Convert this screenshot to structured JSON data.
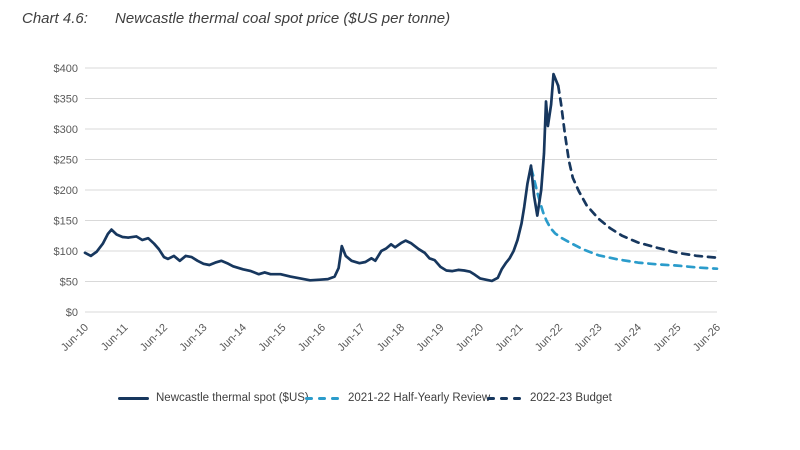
{
  "title": {
    "chart_number": "Chart 4.6:",
    "chart_title": "Newcastle thermal coal spot price ($US per tonne)"
  },
  "colors": {
    "navy": "#17375E",
    "light_blue": "#2B9CCB",
    "gridline": "#D9D9D9",
    "axis_text": "#595959",
    "title_text": "#3F3F3F",
    "legend_text": "#404040"
  },
  "chart_data": {
    "type": "line",
    "title": "Newcastle thermal coal spot price ($US per tonne)",
    "xlabel": "",
    "ylabel": "$US per tonne",
    "grid": "horizontal",
    "legend_position": "bottom",
    "x_axis": {
      "unit": "years since Jun-2010",
      "range": [
        0,
        16
      ],
      "tick_labels": [
        "Jun-10",
        "Jun-11",
        "Jun-12",
        "Jun-13",
        "Jun-14",
        "Jun-15",
        "Jun-16",
        "Jun-17",
        "Jun-18",
        "Jun-19",
        "Jun-20",
        "Jun-21",
        "Jun-22",
        "Jun-23",
        "Jun-24",
        "Jun-25",
        "Jun-26"
      ]
    },
    "y_axis": {
      "range": [
        0,
        400
      ],
      "tick_step": 50,
      "tick_labels": [
        "$0",
        "$50",
        "$100",
        "$150",
        "$200",
        "$250",
        "$300",
        "$350",
        "$400"
      ]
    },
    "series": [
      {
        "id": "newcastle-thermal-spot",
        "name": "Newcastle thermal spot ($US)",
        "style": "solid",
        "color": "#17375E",
        "points": [
          [
            0,
            97
          ],
          [
            0.15,
            92
          ],
          [
            0.3,
            99
          ],
          [
            0.45,
            112
          ],
          [
            0.58,
            128
          ],
          [
            0.67,
            135
          ],
          [
            0.8,
            127
          ],
          [
            0.95,
            123
          ],
          [
            1.1,
            122
          ],
          [
            1.3,
            124
          ],
          [
            1.45,
            118
          ],
          [
            1.6,
            121
          ],
          [
            1.75,
            112
          ],
          [
            1.87,
            103
          ],
          [
            2.0,
            90
          ],
          [
            2.1,
            87
          ],
          [
            2.25,
            92
          ],
          [
            2.4,
            84
          ],
          [
            2.55,
            92
          ],
          [
            2.7,
            90
          ],
          [
            2.85,
            84
          ],
          [
            3.0,
            79
          ],
          [
            3.15,
            77
          ],
          [
            3.3,
            81
          ],
          [
            3.45,
            84
          ],
          [
            3.6,
            80
          ],
          [
            3.75,
            75
          ],
          [
            4.0,
            70
          ],
          [
            4.2,
            67
          ],
          [
            4.4,
            62
          ],
          [
            4.55,
            65
          ],
          [
            4.7,
            62
          ],
          [
            4.95,
            62
          ],
          [
            5.2,
            58
          ],
          [
            5.45,
            55
          ],
          [
            5.7,
            52
          ],
          [
            5.95,
            53
          ],
          [
            6.15,
            54
          ],
          [
            6.32,
            58
          ],
          [
            6.42,
            72
          ],
          [
            6.5,
            108
          ],
          [
            6.6,
            92
          ],
          [
            6.75,
            84
          ],
          [
            6.95,
            80
          ],
          [
            7.1,
            82
          ],
          [
            7.25,
            88
          ],
          [
            7.35,
            84
          ],
          [
            7.5,
            100
          ],
          [
            7.62,
            104
          ],
          [
            7.75,
            111
          ],
          [
            7.85,
            106
          ],
          [
            8.0,
            113
          ],
          [
            8.12,
            117
          ],
          [
            8.25,
            113
          ],
          [
            8.45,
            103
          ],
          [
            8.6,
            97
          ],
          [
            8.72,
            88
          ],
          [
            8.85,
            85
          ],
          [
            9.0,
            74
          ],
          [
            9.15,
            68
          ],
          [
            9.3,
            67
          ],
          [
            9.45,
            69
          ],
          [
            9.6,
            68
          ],
          [
            9.75,
            66
          ],
          [
            9.87,
            61
          ],
          [
            10.0,
            55
          ],
          [
            10.15,
            53
          ],
          [
            10.3,
            51
          ],
          [
            10.45,
            56
          ],
          [
            10.55,
            70
          ],
          [
            10.65,
            80
          ],
          [
            10.75,
            88
          ],
          [
            10.85,
            100
          ],
          [
            10.95,
            118
          ],
          [
            11.05,
            145
          ],
          [
            11.12,
            172
          ],
          [
            11.2,
            210
          ],
          [
            11.29,
            240
          ],
          [
            11.37,
            190
          ],
          [
            11.45,
            158
          ],
          [
            11.55,
            200
          ],
          [
            11.62,
            260
          ],
          [
            11.67,
            345
          ],
          [
            11.72,
            305
          ],
          [
            11.8,
            340
          ],
          [
            11.86,
            390
          ],
          [
            11.98,
            371
          ]
        ]
      },
      {
        "id": "half-yearly-review-2021-22",
        "name": "2021-22 Half-Yearly Review",
        "style": "dashed",
        "color": "#2B9CCB",
        "points": [
          [
            11.3,
            235
          ],
          [
            11.38,
            215
          ],
          [
            11.45,
            196
          ],
          [
            11.52,
            180
          ],
          [
            11.6,
            163
          ],
          [
            11.68,
            150
          ],
          [
            11.78,
            138
          ],
          [
            11.9,
            129
          ],
          [
            12.05,
            122
          ],
          [
            12.3,
            113
          ],
          [
            12.6,
            103
          ],
          [
            13.0,
            93
          ],
          [
            13.5,
            86
          ],
          [
            14.0,
            81
          ],
          [
            14.5,
            78
          ],
          [
            15.0,
            76
          ],
          [
            15.5,
            73
          ],
          [
            16.0,
            71
          ]
        ]
      },
      {
        "id": "budget-2022-23",
        "name": "2022-23 Budget",
        "style": "dashed",
        "color": "#17375E",
        "points": [
          [
            11.98,
            371
          ],
          [
            12.05,
            342
          ],
          [
            12.15,
            292
          ],
          [
            12.25,
            248
          ],
          [
            12.35,
            220
          ],
          [
            12.5,
            198
          ],
          [
            12.7,
            175
          ],
          [
            13.0,
            153
          ],
          [
            13.3,
            137
          ],
          [
            13.6,
            125
          ],
          [
            14.0,
            114
          ],
          [
            14.5,
            105
          ],
          [
            15.0,
            97
          ],
          [
            15.5,
            92
          ],
          [
            16.0,
            89
          ]
        ]
      }
    ]
  },
  "legend": {
    "items": [
      {
        "label": "Newcastle thermal spot ($US)",
        "style": "solid",
        "color": "#17375E"
      },
      {
        "label": "2021-22 Half-Yearly Review",
        "style": "dashed",
        "color": "#2B9CCB"
      },
      {
        "label": "2022-23 Budget",
        "style": "dashed",
        "color": "#17375E"
      }
    ]
  }
}
